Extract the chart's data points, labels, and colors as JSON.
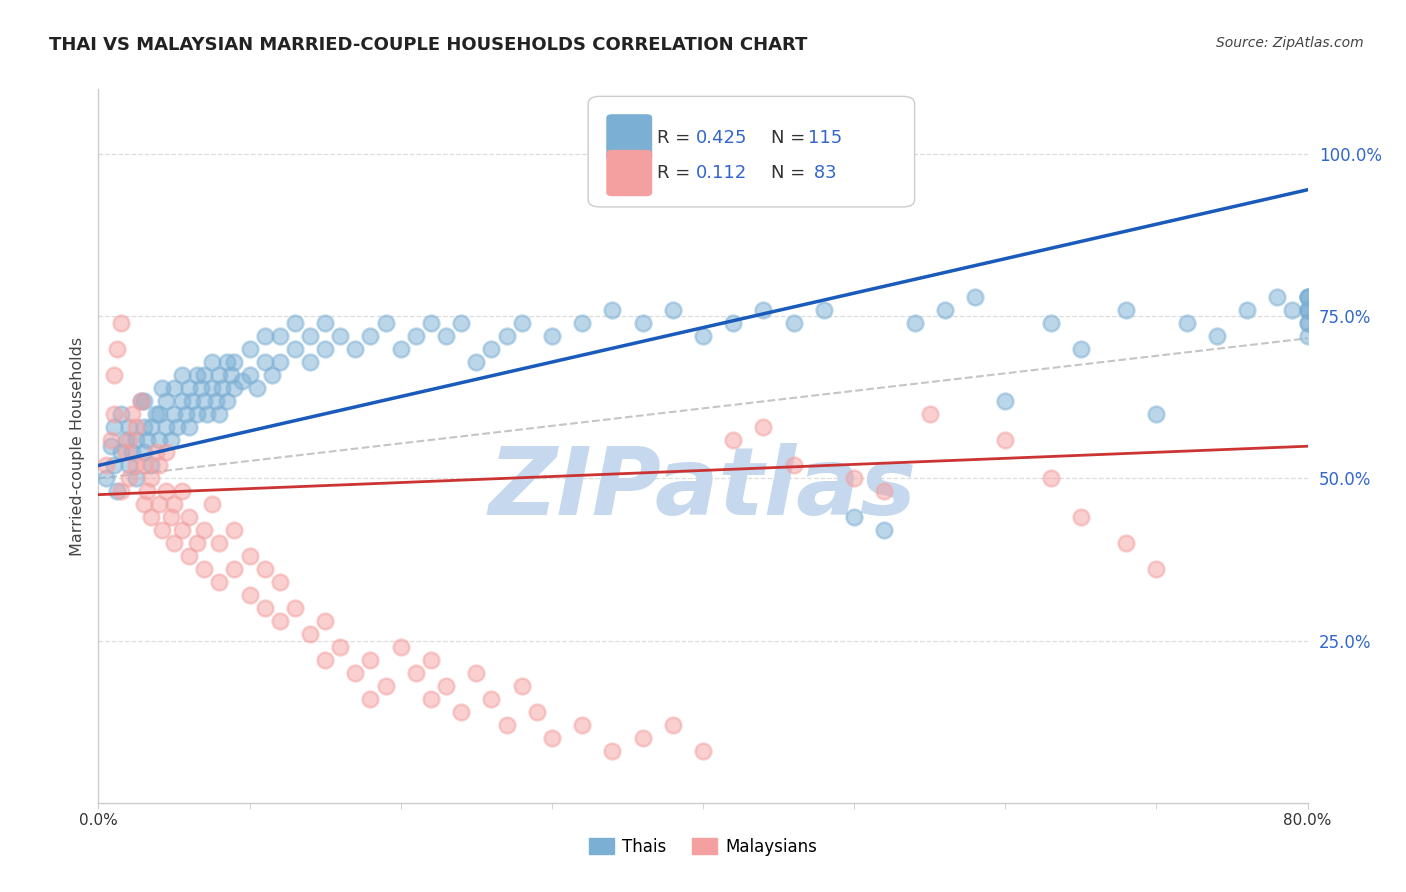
{
  "title": "THAI VS MALAYSIAN MARRIED-COUPLE HOUSEHOLDS CORRELATION CHART",
  "source": "Source: ZipAtlas.com",
  "ylabel": "Married-couple Households",
  "xlim": [
    0.0,
    0.8
  ],
  "ylim": [
    0.0,
    1.1
  ],
  "thai_R": 0.425,
  "thai_N": 115,
  "malay_R": 0.112,
  "malay_N": 83,
  "blue_color": "#7BAFD4",
  "pink_color": "#F4A0A0",
  "trend_blue": "#1A5ABA",
  "trend_pink": "#CC3333",
  "trend_gray": "#BBBBBB",
  "watermark": "ZIPatlas",
  "watermark_color": "#C5D8EE",
  "ytick_vals": [
    0.25,
    0.5,
    0.75,
    1.0
  ],
  "ytick_labels": [
    "25.0%",
    "50.0%",
    "75.0%",
    "100.0%"
  ],
  "xtick_vals": [
    0.0,
    0.8
  ],
  "xtick_labels": [
    "0.0%",
    "80.0%"
  ],
  "grid_color": "#DDDDDD",
  "spine_color": "#CCCCCC",
  "tick_color": "#3366CC",
  "thai_x": [
    0.005,
    0.008,
    0.01,
    0.01,
    0.012,
    0.015,
    0.015,
    0.018,
    0.02,
    0.02,
    0.022,
    0.025,
    0.025,
    0.028,
    0.03,
    0.03,
    0.03,
    0.032,
    0.035,
    0.035,
    0.038,
    0.04,
    0.04,
    0.042,
    0.045,
    0.045,
    0.048,
    0.05,
    0.05,
    0.052,
    0.055,
    0.055,
    0.058,
    0.06,
    0.06,
    0.062,
    0.065,
    0.065,
    0.068,
    0.07,
    0.07,
    0.072,
    0.075,
    0.075,
    0.078,
    0.08,
    0.08,
    0.082,
    0.085,
    0.085,
    0.088,
    0.09,
    0.09,
    0.095,
    0.1,
    0.1,
    0.105,
    0.11,
    0.11,
    0.115,
    0.12,
    0.12,
    0.13,
    0.13,
    0.14,
    0.14,
    0.15,
    0.15,
    0.16,
    0.17,
    0.18,
    0.19,
    0.2,
    0.21,
    0.22,
    0.23,
    0.24,
    0.25,
    0.26,
    0.27,
    0.28,
    0.3,
    0.32,
    0.34,
    0.36,
    0.38,
    0.4,
    0.42,
    0.44,
    0.46,
    0.48,
    0.5,
    0.52,
    0.54,
    0.56,
    0.58,
    0.6,
    0.63,
    0.65,
    0.68,
    0.7,
    0.72,
    0.74,
    0.76,
    0.78,
    0.79,
    0.8,
    0.8,
    0.8,
    0.8,
    0.8,
    0.8,
    0.8,
    0.8,
    0.8
  ],
  "thai_y": [
    0.5,
    0.55,
    0.52,
    0.58,
    0.48,
    0.54,
    0.6,
    0.56,
    0.52,
    0.58,
    0.54,
    0.5,
    0.56,
    0.62,
    0.54,
    0.58,
    0.62,
    0.56,
    0.52,
    0.58,
    0.6,
    0.56,
    0.6,
    0.64,
    0.58,
    0.62,
    0.56,
    0.6,
    0.64,
    0.58,
    0.62,
    0.66,
    0.6,
    0.64,
    0.58,
    0.62,
    0.66,
    0.6,
    0.64,
    0.62,
    0.66,
    0.6,
    0.64,
    0.68,
    0.62,
    0.66,
    0.6,
    0.64,
    0.68,
    0.62,
    0.66,
    0.64,
    0.68,
    0.65,
    0.66,
    0.7,
    0.64,
    0.68,
    0.72,
    0.66,
    0.68,
    0.72,
    0.7,
    0.74,
    0.68,
    0.72,
    0.7,
    0.74,
    0.72,
    0.7,
    0.72,
    0.74,
    0.7,
    0.72,
    0.74,
    0.72,
    0.74,
    0.68,
    0.7,
    0.72,
    0.74,
    0.72,
    0.74,
    0.76,
    0.74,
    0.76,
    0.72,
    0.74,
    0.76,
    0.74,
    0.76,
    0.44,
    0.42,
    0.74,
    0.76,
    0.78,
    0.62,
    0.74,
    0.7,
    0.76,
    0.6,
    0.74,
    0.72,
    0.76,
    0.78,
    0.76,
    0.78,
    0.76,
    0.72,
    0.74,
    0.76,
    0.78,
    0.74,
    0.76,
    0.78
  ],
  "malay_x": [
    0.005,
    0.008,
    0.01,
    0.01,
    0.012,
    0.015,
    0.015,
    0.018,
    0.02,
    0.02,
    0.022,
    0.025,
    0.025,
    0.028,
    0.03,
    0.03,
    0.032,
    0.035,
    0.035,
    0.038,
    0.04,
    0.04,
    0.042,
    0.045,
    0.045,
    0.048,
    0.05,
    0.05,
    0.055,
    0.055,
    0.06,
    0.06,
    0.065,
    0.07,
    0.07,
    0.075,
    0.08,
    0.08,
    0.09,
    0.09,
    0.1,
    0.1,
    0.11,
    0.11,
    0.12,
    0.12,
    0.13,
    0.14,
    0.15,
    0.15,
    0.16,
    0.17,
    0.18,
    0.18,
    0.19,
    0.2,
    0.21,
    0.22,
    0.22,
    0.23,
    0.24,
    0.25,
    0.26,
    0.27,
    0.28,
    0.29,
    0.3,
    0.32,
    0.34,
    0.36,
    0.38,
    0.4,
    0.42,
    0.44,
    0.46,
    0.5,
    0.52,
    0.55,
    0.6,
    0.63,
    0.65,
    0.68,
    0.7
  ],
  "malay_y": [
    0.52,
    0.56,
    0.6,
    0.66,
    0.7,
    0.74,
    0.48,
    0.54,
    0.5,
    0.56,
    0.6,
    0.52,
    0.58,
    0.62,
    0.46,
    0.52,
    0.48,
    0.44,
    0.5,
    0.54,
    0.46,
    0.52,
    0.42,
    0.48,
    0.54,
    0.44,
    0.4,
    0.46,
    0.42,
    0.48,
    0.38,
    0.44,
    0.4,
    0.36,
    0.42,
    0.46,
    0.34,
    0.4,
    0.36,
    0.42,
    0.32,
    0.38,
    0.3,
    0.36,
    0.28,
    0.34,
    0.3,
    0.26,
    0.22,
    0.28,
    0.24,
    0.2,
    0.16,
    0.22,
    0.18,
    0.24,
    0.2,
    0.16,
    0.22,
    0.18,
    0.14,
    0.2,
    0.16,
    0.12,
    0.18,
    0.14,
    0.1,
    0.12,
    0.08,
    0.1,
    0.12,
    0.08,
    0.56,
    0.58,
    0.52,
    0.5,
    0.48,
    0.6,
    0.56,
    0.5,
    0.44,
    0.4,
    0.36
  ]
}
